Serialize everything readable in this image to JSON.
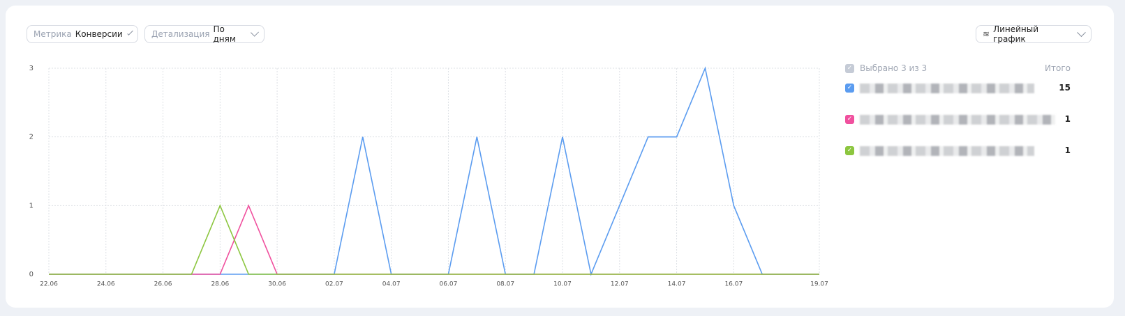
{
  "controls": {
    "metric_label": "Метрика",
    "metric_value": "Конверсии",
    "detail_label": "Детализация",
    "detail_value": "По дням",
    "chart_type": "Линейный график"
  },
  "legend": {
    "header": "Выбрано 3 из 3",
    "total_header": "Итого",
    "totals": [
      15,
      1,
      1
    ]
  },
  "chart_data": {
    "type": "line",
    "categories": [
      "22.06",
      null,
      "24.06",
      null,
      "26.06",
      null,
      "28.06",
      null,
      "30.06",
      null,
      "02.07",
      null,
      "04.07",
      null,
      "06.07",
      null,
      "08.07",
      null,
      "10.07",
      null,
      "12.07",
      null,
      "14.07",
      null,
      "16.07",
      null,
      null,
      "19.07"
    ],
    "series": [
      {
        "color": "#5b9cf0",
        "values": [
          0,
          0,
          0,
          0,
          0,
          0,
          0,
          0,
          0,
          0,
          0,
          2,
          0,
          0,
          0,
          2,
          0,
          0,
          2,
          0,
          1,
          2,
          2,
          3,
          1,
          0,
          0,
          0
        ]
      },
      {
        "color": "#f0509e",
        "values": [
          0,
          0,
          0,
          0,
          0,
          0,
          0,
          1,
          0,
          0,
          0,
          0,
          0,
          0,
          0,
          0,
          0,
          0,
          0,
          0,
          0,
          0,
          0,
          0,
          0,
          0,
          0,
          0
        ]
      },
      {
        "color": "#8cc63f",
        "values": [
          0,
          0,
          0,
          0,
          0,
          0,
          1,
          0,
          0,
          0,
          0,
          0,
          0,
          0,
          0,
          0,
          0,
          0,
          0,
          0,
          0,
          0,
          0,
          0,
          0,
          0,
          0,
          0
        ]
      }
    ],
    "ylim": [
      0,
      3
    ],
    "yticks": [
      0,
      1,
      2,
      3
    ],
    "grid": true
  }
}
